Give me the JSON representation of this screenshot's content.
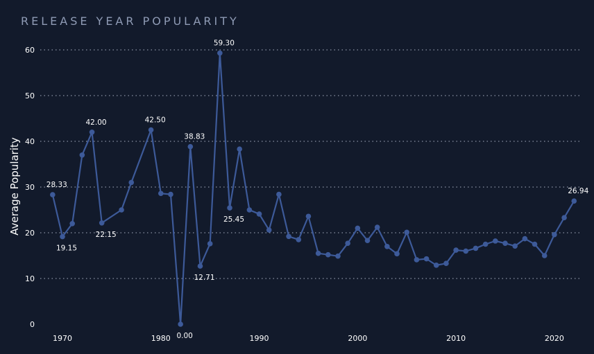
{
  "chart_data": {
    "type": "line",
    "title": "RELEASE YEAR POPULARITY",
    "xlabel": "",
    "ylabel": "Average Popularity",
    "xlim": [
      1968,
      2023
    ],
    "ylim": [
      0,
      62
    ],
    "x_ticks": [
      1970,
      1980,
      1990,
      2000,
      2010,
      2020
    ],
    "y_ticks": [
      0,
      10,
      20,
      30,
      40,
      50,
      60
    ],
    "grid": "horizontal dotted",
    "series": [
      {
        "color": "#3d5a99",
        "points": [
          {
            "x": 1969,
            "y": 28.33,
            "label": "28.33"
          },
          {
            "x": 1970,
            "y": 19.15,
            "label": "19.15"
          },
          {
            "x": 1971,
            "y": 22.0
          },
          {
            "x": 1972,
            "y": 37.0
          },
          {
            "x": 1973,
            "y": 42.0,
            "label": "42.00"
          },
          {
            "x": 1974,
            "y": 22.15,
            "label": "22.15"
          },
          {
            "x": 1976,
            "y": 25.0
          },
          {
            "x": 1977,
            "y": 31.0
          },
          {
            "x": 1979,
            "y": 42.5,
            "label": "42.50"
          },
          {
            "x": 1980,
            "y": 28.6
          },
          {
            "x": 1981,
            "y": 28.4
          },
          {
            "x": 1982,
            "y": 0.0,
            "label": "0.00"
          },
          {
            "x": 1983,
            "y": 38.83,
            "label": "38.83"
          },
          {
            "x": 1984,
            "y": 12.71,
            "label": "12.71"
          },
          {
            "x": 1985,
            "y": 17.6
          },
          {
            "x": 1986,
            "y": 59.3,
            "label": "59.30"
          },
          {
            "x": 1987,
            "y": 25.45,
            "label": "25.45"
          },
          {
            "x": 1988,
            "y": 38.3
          },
          {
            "x": 1989,
            "y": 25.0
          },
          {
            "x": 1990,
            "y": 24.1
          },
          {
            "x": 1991,
            "y": 20.6
          },
          {
            "x": 1992,
            "y": 28.4
          },
          {
            "x": 1993,
            "y": 19.2
          },
          {
            "x": 1994,
            "y": 18.5
          },
          {
            "x": 1995,
            "y": 23.6
          },
          {
            "x": 1996,
            "y": 15.5
          },
          {
            "x": 1997,
            "y": 15.2
          },
          {
            "x": 1998,
            "y": 14.9
          },
          {
            "x": 1999,
            "y": 17.7
          },
          {
            "x": 2000,
            "y": 21.0
          },
          {
            "x": 2001,
            "y": 18.3
          },
          {
            "x": 2002,
            "y": 21.2
          },
          {
            "x": 2003,
            "y": 17.0
          },
          {
            "x": 2004,
            "y": 15.4
          },
          {
            "x": 2005,
            "y": 20.1
          },
          {
            "x": 2006,
            "y": 14.1
          },
          {
            "x": 2007,
            "y": 14.3
          },
          {
            "x": 2008,
            "y": 12.9
          },
          {
            "x": 2009,
            "y": 13.3
          },
          {
            "x": 2010,
            "y": 16.2
          },
          {
            "x": 2011,
            "y": 16.0
          },
          {
            "x": 2012,
            "y": 16.6
          },
          {
            "x": 2013,
            "y": 17.5
          },
          {
            "x": 2014,
            "y": 18.2
          },
          {
            "x": 2015,
            "y": 17.7
          },
          {
            "x": 2016,
            "y": 17.1
          },
          {
            "x": 2017,
            "y": 18.7
          },
          {
            "x": 2018,
            "y": 17.5
          },
          {
            "x": 2019,
            "y": 15.0
          },
          {
            "x": 2020,
            "y": 19.6
          },
          {
            "x": 2021,
            "y": 23.3
          },
          {
            "x": 2022,
            "y": 26.94,
            "label": "26.94"
          }
        ]
      }
    ]
  }
}
